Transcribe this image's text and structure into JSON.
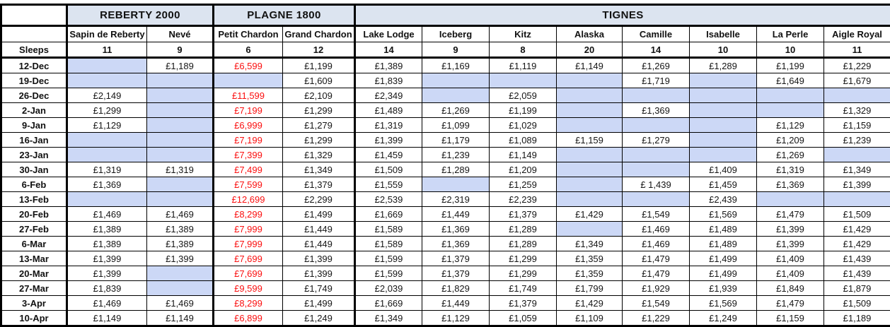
{
  "colors": {
    "header_bg": "#dce4f0",
    "highlight_cell": "#ccd8f6",
    "price_red": "#fb0f0f",
    "border": "#000000"
  },
  "table": {
    "groups": [
      {
        "label": "REBERTY 2000",
        "span": 2
      },
      {
        "label": "PLAGNE 1800",
        "span": 2
      },
      {
        "label": "TIGNES",
        "span": 8
      }
    ],
    "columns": [
      "Sapin de Reberty",
      "Nevé",
      "Petit Chardon",
      "Grand Chardon",
      "Lake Lodge",
      "Iceberg",
      "Kitz",
      "Alaska",
      "Camille",
      "Isabelle",
      "La Perle",
      "Aigle Royal"
    ],
    "sleeps_label": "Sleeps",
    "sleeps": [
      "11",
      "9",
      "6",
      "12",
      "14",
      "9",
      "8",
      "20",
      "14",
      "10",
      "10",
      "11"
    ],
    "red_price_column_index": 2,
    "rows": [
      {
        "date": "12-Dec",
        "values": [
          "",
          "£1,189",
          "£6,599",
          "£1,199",
          "£1,389",
          "£1,169",
          "£1,119",
          "£1,149",
          "£1,269",
          "£1,289",
          "£1,199",
          "£1,229"
        ]
      },
      {
        "date": "19-Dec",
        "values": [
          "",
          "",
          "",
          "£1,609",
          "£1,839",
          "",
          "",
          "",
          "£1,719",
          "",
          "£1,649",
          "£1,679"
        ]
      },
      {
        "date": "26-Dec",
        "values": [
          "£2,149",
          "",
          "£11,599",
          "£2,109",
          "£2,349",
          "",
          "£2,059",
          "",
          "",
          "",
          "",
          ""
        ]
      },
      {
        "date": "2-Jan",
        "values": [
          "£1,299",
          "",
          "£7,199",
          "£1,299",
          "£1,489",
          "£1,269",
          "£1,199",
          "",
          "£1,369",
          "",
          "",
          "£1,329"
        ]
      },
      {
        "date": "9-Jan",
        "values": [
          "£1,129",
          "",
          "£6,999",
          "£1,279",
          "£1,319",
          "£1,099",
          "£1,029",
          "",
          "",
          "",
          "£1,129",
          "£1,159"
        ]
      },
      {
        "date": "16-Jan",
        "values": [
          "",
          "",
          "£7,199",
          "£1,299",
          "£1,399",
          "£1,179",
          "£1,089",
          "£1,159",
          "£1,279",
          "",
          "£1,209",
          "£1,239"
        ]
      },
      {
        "date": "23-Jan",
        "values": [
          "",
          "",
          "£7,399",
          "£1,329",
          "£1,459",
          "£1,239",
          "£1,149",
          "",
          "",
          "",
          "£1,269",
          ""
        ]
      },
      {
        "date": "30-Jan",
        "values": [
          "£1,319",
          "£1,319",
          "£7,499",
          "£1,349",
          "£1,509",
          "£1,289",
          "£1,209",
          "",
          "",
          "£1,409",
          "£1,319",
          "£1,349"
        ]
      },
      {
        "date": "6-Feb",
        "values": [
          "£1,369",
          "",
          "£7,599",
          "£1,379",
          "£1,559",
          "",
          "£1,259",
          "",
          "£ 1,439",
          "£1,459",
          "£1,369",
          "£1,399"
        ]
      },
      {
        "date": "13-Feb",
        "values": [
          "",
          "",
          "£12,699",
          "£2,299",
          "£2,539",
          "£2,319",
          "£2,239",
          "",
          "",
          "£2,439",
          "",
          ""
        ]
      },
      {
        "date": "20-Feb",
        "values": [
          "£1,469",
          "£1,469",
          "£8,299",
          "£1,499",
          "£1,669",
          "£1,449",
          "£1,379",
          "£1,429",
          "£1,549",
          "£1,569",
          "£1,479",
          "£1,509"
        ]
      },
      {
        "date": "27-Feb",
        "values": [
          "£1,389",
          "£1,389",
          "£7,999",
          "£1,449",
          "£1,589",
          "£1,369",
          "£1,289",
          "",
          "£1,469",
          "£1,489",
          "£1,399",
          "£1,429"
        ]
      },
      {
        "date": "6-Mar",
        "values": [
          "£1,389",
          "£1,389",
          "£7,999",
          "£1,449",
          "£1,589",
          "£1,369",
          "£1,289",
          "£1,349",
          "£1,469",
          "£1,489",
          "£1,399",
          "£1,429"
        ]
      },
      {
        "date": "13-Mar",
        "values": [
          "£1,399",
          "£1,399",
          "£7,699",
          "£1,399",
          "£1,599",
          "£1,379",
          "£1,299",
          "£1,359",
          "£1,479",
          "£1,499",
          "£1,409",
          "£1,439"
        ]
      },
      {
        "date": "20-Mar",
        "values": [
          "£1,399",
          "",
          "£7,699",
          "£1,399",
          "£1,599",
          "£1,379",
          "£1,299",
          "£1,359",
          "£1,479",
          "£1,499",
          "£1,409",
          "£1,439"
        ]
      },
      {
        "date": "27-Mar",
        "values": [
          "£1,839",
          "",
          "£9,599",
          "£1,749",
          "£2,039",
          "£1,829",
          "£1,749",
          "£1,799",
          "£1,929",
          "£1,939",
          "£1,849",
          "£1,879"
        ]
      },
      {
        "date": "3-Apr",
        "values": [
          "£1,469",
          "£1,469",
          "£8,299",
          "£1,499",
          "£1,669",
          "£1,449",
          "£1,379",
          "£1,429",
          "£1,549",
          "£1,569",
          "£1,479",
          "£1,509"
        ]
      },
      {
        "date": "10-Apr",
        "values": [
          "£1,149",
          "£1,149",
          "£6,899",
          "£1,249",
          "£1,349",
          "£1,129",
          "£1,059",
          "£1,109",
          "£1,229",
          "£1,249",
          "£1,159",
          "£1,189"
        ]
      }
    ]
  }
}
